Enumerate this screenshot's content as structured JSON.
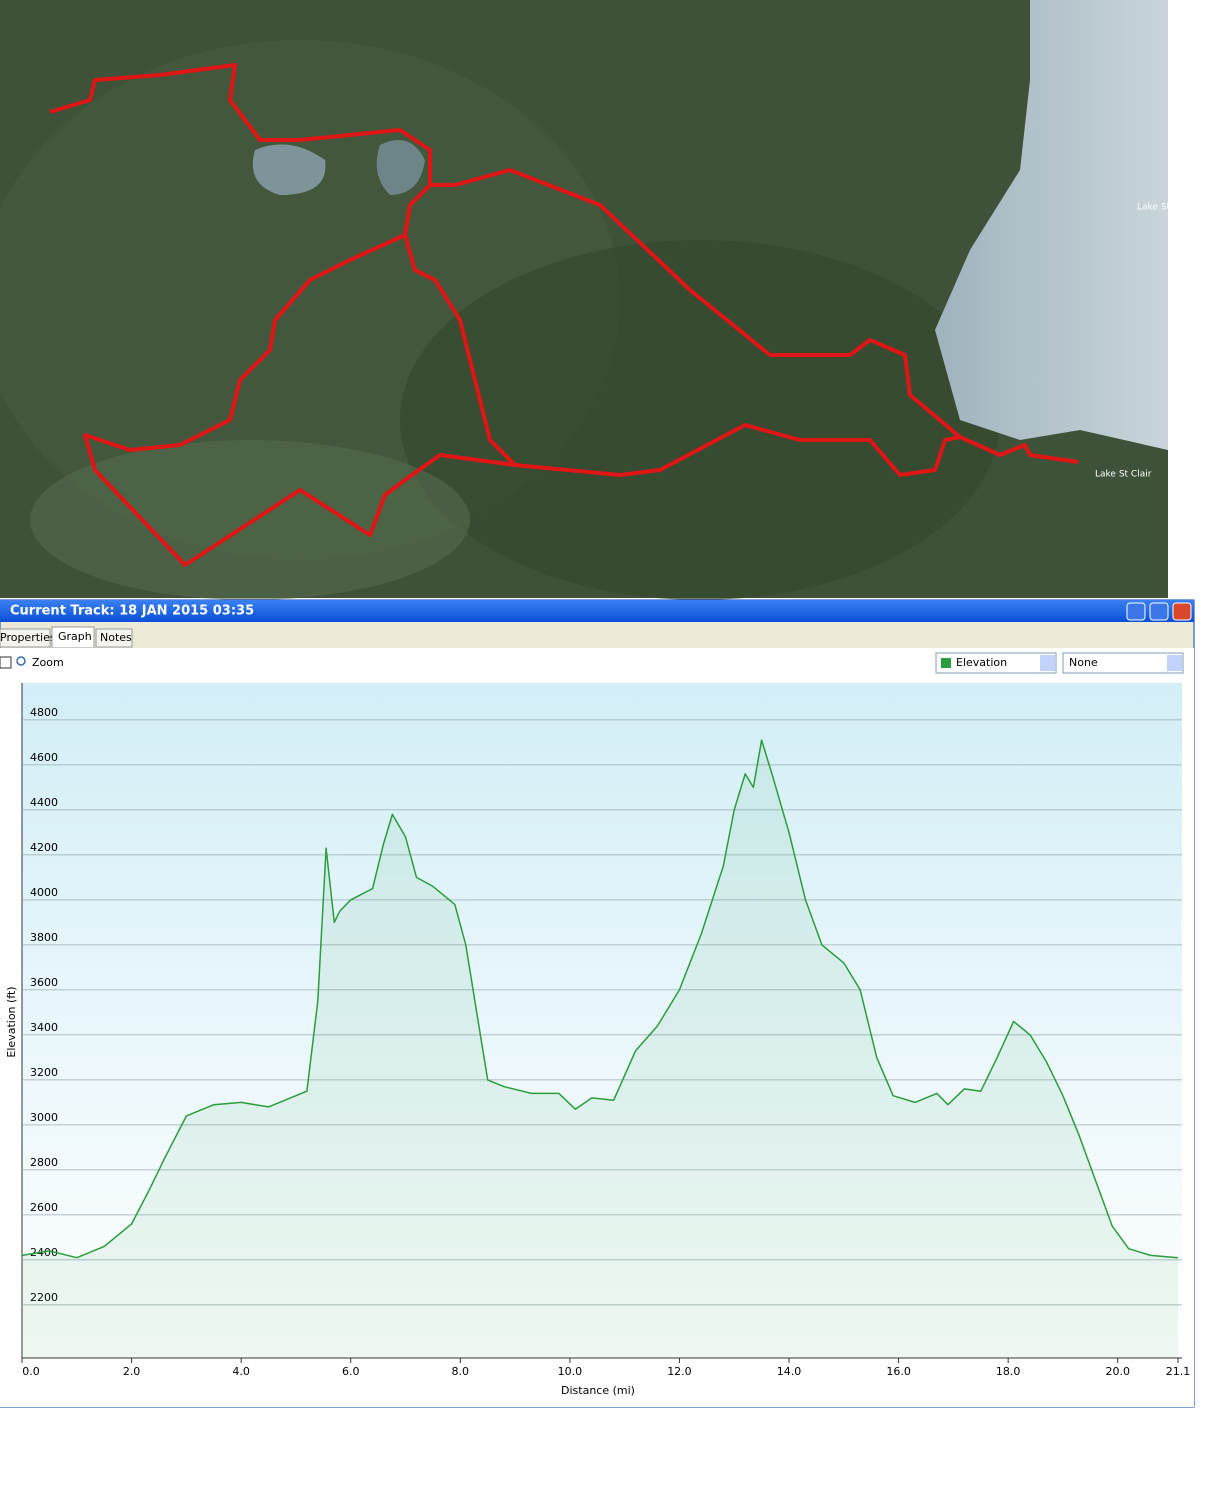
{
  "map": {
    "labels": [
      "Lake St",
      "Lake St Clair"
    ]
  },
  "window": {
    "title": "Current Track: 18 JAN 2015 03:35",
    "tabs": [
      "Properties",
      "Graph",
      "Notes"
    ],
    "zoom": "Zoom",
    "secondary_select": "None"
  },
  "chart_data": {
    "type": "line",
    "x_label": "Distance  (mi)",
    "y_label": "Elevation (ft)",
    "x": [
      0,
      0.5,
      1.0,
      1.5,
      2.0,
      2.3,
      2.6,
      3.0,
      3.5,
      4.0,
      4.5,
      5.0,
      5.2,
      5.4,
      5.55,
      5.7,
      5.8,
      6.0,
      6.4,
      6.6,
      6.76,
      7.0,
      7.2,
      7.5,
      7.9,
      8.1,
      8.3,
      8.5,
      8.8,
      9.3,
      9.8,
      10.1,
      10.4,
      10.8,
      11.2,
      11.6,
      12.0,
      12.4,
      12.8,
      13.0,
      13.2,
      13.35,
      13.5,
      13.7,
      14.0,
      14.3,
      14.6,
      15.0,
      15.3,
      15.6,
      15.9,
      16.3,
      16.7,
      16.9,
      17.2,
      17.5,
      17.8,
      18.1,
      18.4,
      18.7,
      19.0,
      19.3,
      19.6,
      19.9,
      20.2,
      20.6,
      21.1
    ],
    "series": [
      {
        "name": "Elevation",
        "color": "#2a9d3c",
        "values": [
          2420,
          2440,
          2410,
          2460,
          2560,
          2700,
          2850,
          3040,
          3090,
          3100,
          3080,
          3130,
          3150,
          3550,
          4230,
          3900,
          3950,
          4000,
          4050,
          4250,
          4380,
          4280,
          4100,
          4060,
          3980,
          3800,
          3500,
          3200,
          3170,
          3140,
          3140,
          3070,
          3120,
          3110,
          3330,
          3440,
          3600,
          3850,
          4150,
          4400,
          4560,
          4500,
          4710,
          4550,
          4300,
          4000,
          3800,
          3720,
          3600,
          3300,
          3130,
          3100,
          3140,
          3090,
          3160,
          3150,
          3300,
          3460,
          3400,
          3280,
          3130,
          2950,
          2750,
          2550,
          2450,
          2420,
          2410
        ]
      }
    ],
    "xlim": [
      0,
      21.1
    ],
    "ylim": [
      1964,
      4964
    ],
    "xticks": [
      {
        "value": 0,
        "label": "0.0"
      },
      {
        "value": 2,
        "label": "2.0"
      },
      {
        "value": 4,
        "label": "4.0"
      },
      {
        "value": 6,
        "label": "6.0"
      },
      {
        "value": 8,
        "label": "8.0"
      },
      {
        "value": 10,
        "label": "10.0"
      },
      {
        "value": 12,
        "label": "12.0"
      },
      {
        "value": 14,
        "label": "14.0"
      },
      {
        "value": 16,
        "label": "16.0"
      },
      {
        "value": 18,
        "label": "18.0"
      },
      {
        "value": 20,
        "label": "20.0"
      },
      21.1
    ],
    "yticks": [
      2200,
      2400,
      2600,
      2800,
      3000,
      3200,
      3400,
      3600,
      3800,
      4000,
      4200,
      4400,
      4600,
      4800
    ],
    "grid": true
  }
}
